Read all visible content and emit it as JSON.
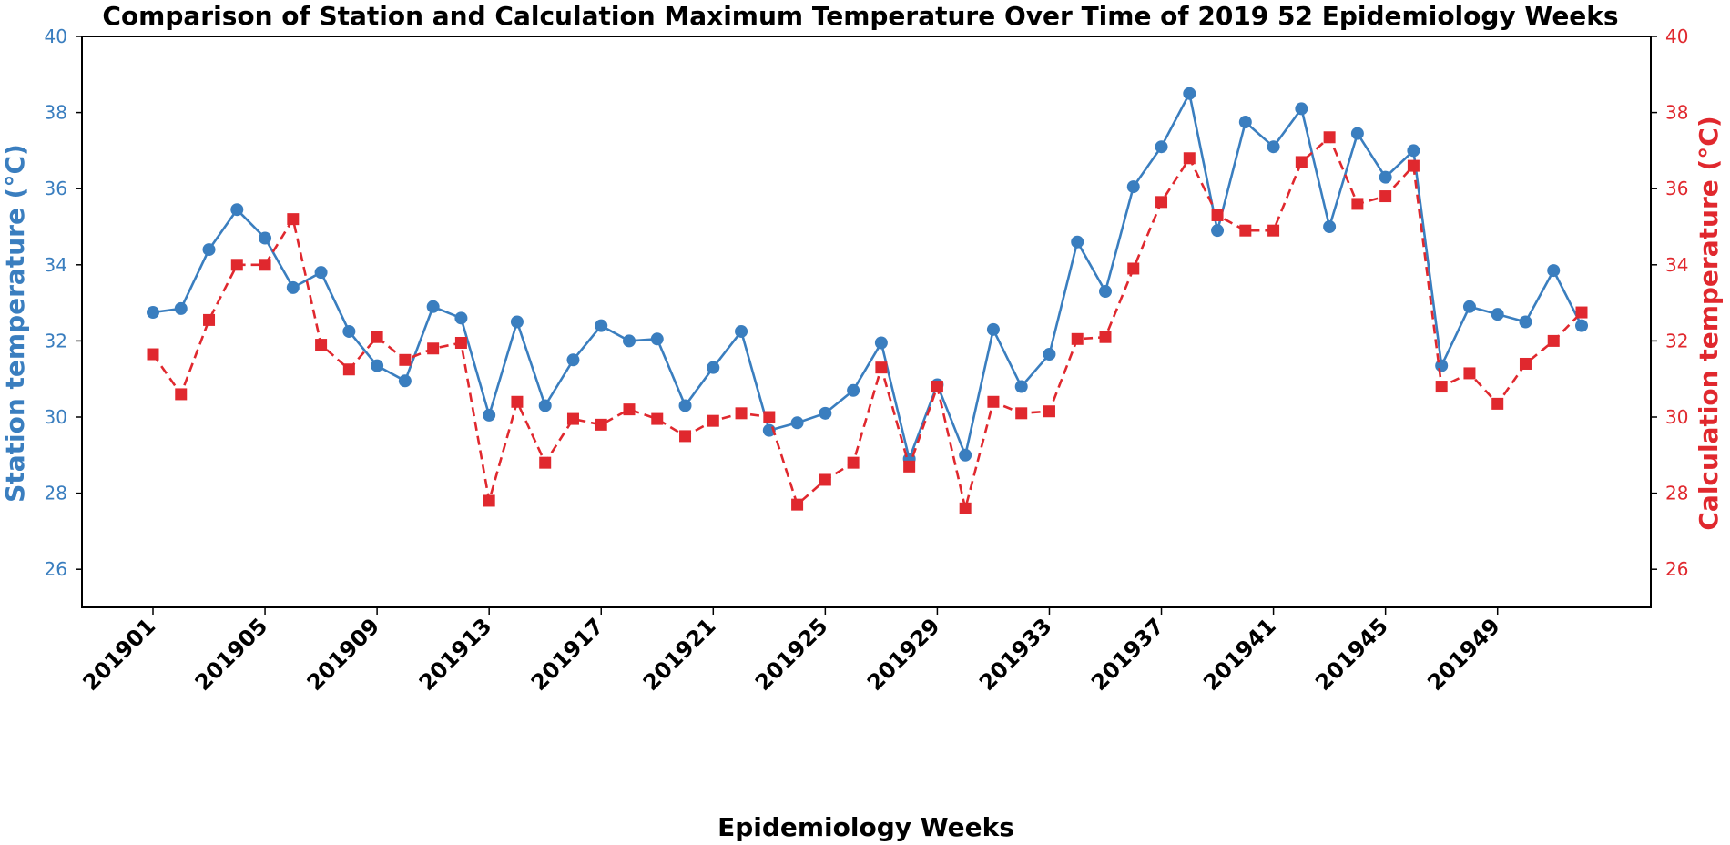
{
  "chart_data": {
    "type": "line",
    "title": "Comparison of Station and Calculation Maximum Temperature Over Time of 2019 52 Epidemiology Weeks",
    "xlabel": "Epidemiology Weeks",
    "ylabel_left": "Station temperature (°C)",
    "ylabel_right": "Calculation temperature (°C)",
    "ylim": [
      25,
      40
    ],
    "yticks": [
      26,
      28,
      30,
      32,
      34,
      36,
      38,
      40
    ],
    "ytick_labels": [
      "26",
      "28",
      "30",
      "32",
      "34",
      "36",
      "38",
      "40"
    ],
    "xtick_labels": [
      "201901",
      "201905",
      "201909",
      "201913",
      "201917",
      "201921",
      "201925",
      "201929",
      "201933",
      "201937",
      "201941",
      "201945",
      "201949"
    ],
    "xtick_every": 4,
    "grid": false,
    "colors": {
      "station": "#3a7ebf",
      "calculation": "#e0282e",
      "axis": "#000000"
    },
    "series": [
      {
        "name": "Station temperature",
        "axis": "left",
        "style": "solid-circle",
        "values": [
          32.75,
          32.85,
          34.4,
          35.45,
          34.7,
          33.4,
          33.8,
          32.25,
          31.35,
          30.95,
          32.9,
          32.6,
          30.05,
          32.5,
          30.3,
          31.5,
          32.4,
          32.0,
          32.05,
          30.3,
          31.3,
          32.25,
          29.65,
          29.85,
          30.1,
          30.7,
          31.95,
          28.9,
          30.85,
          29.0,
          32.3,
          30.8,
          31.65,
          34.6,
          33.3,
          36.05,
          37.1,
          38.5,
          34.9,
          37.75,
          37.1,
          38.1,
          35.0,
          37.45,
          36.3,
          37.0,
          31.35,
          32.9,
          32.7,
          32.5,
          33.85,
          32.4
        ]
      },
      {
        "name": "Calculation temperature",
        "axis": "right",
        "style": "dashed-square",
        "values": [
          31.65,
          30.6,
          32.55,
          34.0,
          34.0,
          35.2,
          31.9,
          31.25,
          32.1,
          31.5,
          31.8,
          31.95,
          27.8,
          30.4,
          28.8,
          29.95,
          29.8,
          30.2,
          29.95,
          29.5,
          29.9,
          30.1,
          30.0,
          27.7,
          28.35,
          28.8,
          31.3,
          28.7,
          30.8,
          27.6,
          30.4,
          30.1,
          30.15,
          32.05,
          32.1,
          33.9,
          35.65,
          36.8,
          35.3,
          34.9,
          34.9,
          36.7,
          37.35,
          35.6,
          35.8,
          36.6,
          30.8,
          31.15,
          30.35,
          31.4,
          32.0,
          32.75
        ]
      }
    ]
  }
}
